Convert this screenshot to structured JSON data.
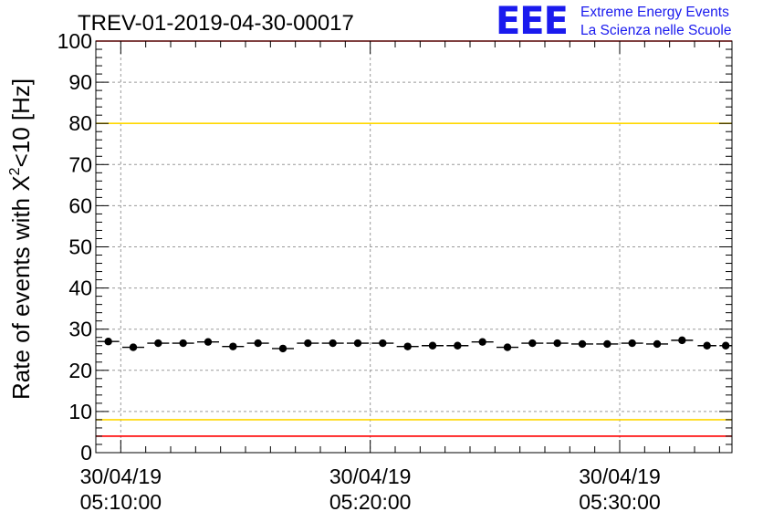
{
  "logo": {
    "mark": "EEE",
    "line1": "Extreme Energy Events",
    "line2": "La Scienza nelle Scuole"
  },
  "chart_data": {
    "type": "scatter",
    "title": "TREV-01-2019-04-30-00017",
    "ylabel_main": "Rate of events with X",
    "ylabel_sup": "2",
    "ylabel_tail": "<10 [Hz]",
    "ylim": [
      0,
      100
    ],
    "xlim": [
      "05:09:00",
      "05:34:30"
    ],
    "y_ticks": [
      0,
      10,
      20,
      30,
      40,
      50,
      60,
      70,
      80,
      90,
      100
    ],
    "x_ticks": [
      {
        "time": "05:10:00",
        "date": "30/04/19",
        "clock": "05:10:00"
      },
      {
        "time": "05:20:00",
        "date": "30/04/19",
        "clock": "05:20:00"
      },
      {
        "time": "05:30:00",
        "date": "30/04/19",
        "clock": "05:30:00"
      }
    ],
    "grid": true,
    "series": [
      {
        "marker": "circle",
        "color": "#000000",
        "x": [
          "05:09:30",
          "05:10:30",
          "05:11:30",
          "05:12:30",
          "05:13:30",
          "05:14:30",
          "05:15:30",
          "05:16:30",
          "05:17:30",
          "05:18:30",
          "05:19:30",
          "05:20:30",
          "05:21:30",
          "05:22:30",
          "05:23:30",
          "05:24:30",
          "05:25:30",
          "05:26:30",
          "05:27:30",
          "05:28:30",
          "05:29:30",
          "05:30:30",
          "05:31:30",
          "05:32:30",
          "05:33:30",
          "05:34:15"
        ],
        "y": [
          27.0,
          25.6,
          26.6,
          26.6,
          26.9,
          25.8,
          26.6,
          25.3,
          26.6,
          26.6,
          26.6,
          26.6,
          25.8,
          26.0,
          26.0,
          26.9,
          25.6,
          26.6,
          26.6,
          26.4,
          26.4,
          26.6,
          26.4,
          27.3,
          26.0,
          26.0
        ]
      }
    ],
    "reference_lines": [
      {
        "y": 80,
        "color": "#ffd700"
      },
      {
        "y": 8,
        "color": "#ffd700"
      },
      {
        "y": 100,
        "color": "#ff0000"
      },
      {
        "y": 4,
        "color": "#ff0000"
      }
    ]
  }
}
